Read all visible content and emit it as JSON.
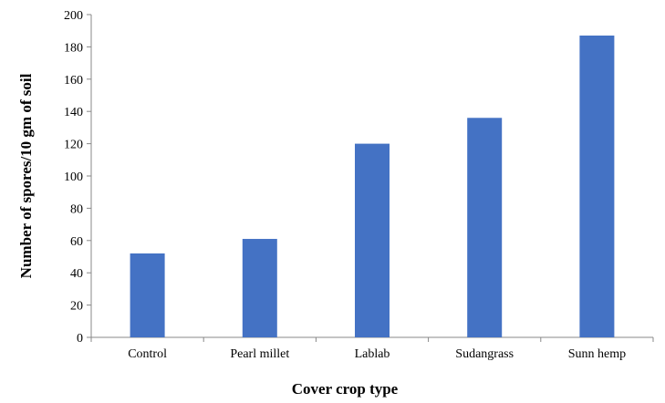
{
  "chart_data": {
    "type": "bar",
    "categories": [
      "Control",
      "Pearl millet",
      "Lablab",
      "Sudangrass",
      "Sunn hemp"
    ],
    "values": [
      52,
      61,
      120,
      136,
      187
    ],
    "title": "",
    "xlabel": "Cover crop type",
    "ylabel": "Number of spores/10 gm of soil",
    "ylim": [
      0,
      200
    ],
    "yticks": [
      0,
      20,
      40,
      60,
      80,
      100,
      120,
      140,
      160,
      180,
      200
    ],
    "grid": false,
    "legend": "none",
    "bar_color": "#4472C4"
  }
}
